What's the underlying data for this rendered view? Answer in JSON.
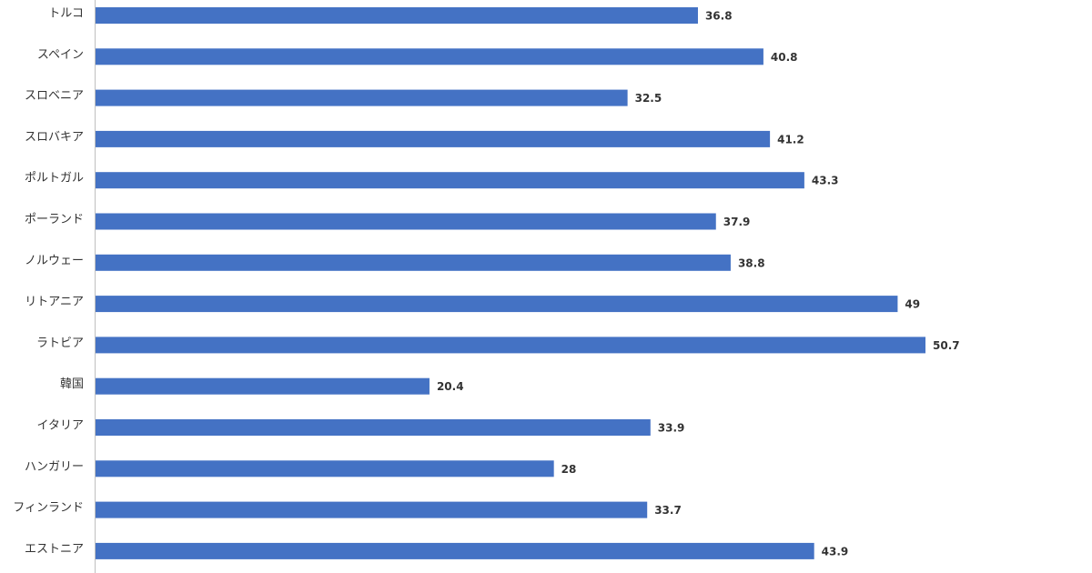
{
  "chart_data": {
    "type": "barh",
    "categories": [
      "トルコ",
      "スペイン",
      "スロベニア",
      "スロバキア",
      "ポルトガル",
      "ポーランド",
      "ノルウェー",
      "リトアニア",
      "ラトビア",
      "韓国",
      "イタリア",
      "ハンガリー",
      "フィンランド",
      "エストニア"
    ],
    "values": [
      36.8,
      40.8,
      32.5,
      41.2,
      43.3,
      37.9,
      38.8,
      49,
      50.7,
      20.4,
      33.9,
      28,
      33.7,
      43.9
    ],
    "color": "#4472c4"
  }
}
